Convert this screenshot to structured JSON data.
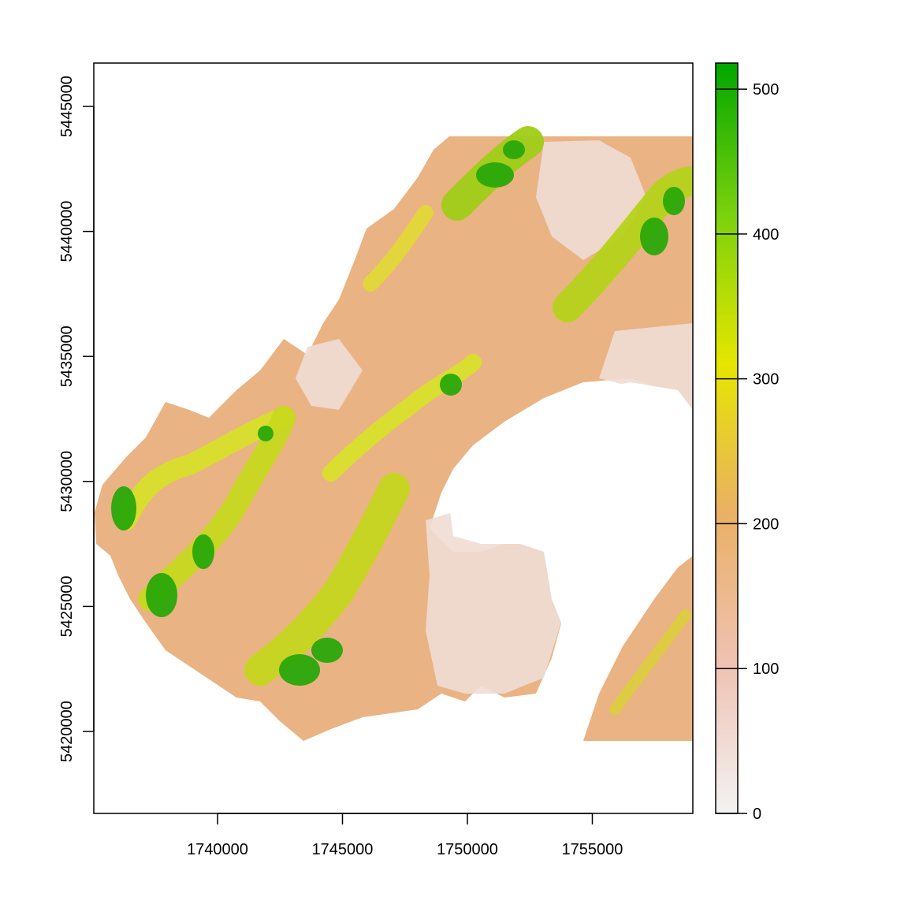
{
  "map": {
    "x_axis": {
      "range": [
        1735000,
        1759000
      ],
      "ticks": [
        1740000,
        1745000,
        1750000,
        1755000
      ],
      "tick_labels": [
        "1740000",
        "1745000",
        "1750000",
        "1755000"
      ]
    },
    "y_axis": {
      "range": [
        1416700,
        5446800
      ],
      "ticks": [
        5420000,
        5425000,
        5430000,
        5435000,
        5440000,
        5445000
      ],
      "tick_labels": [
        "5420000",
        "5425000",
        "5430000",
        "5435000",
        "5440000",
        "5445000"
      ]
    },
    "legend": {
      "placement": "right",
      "range": [
        0,
        518
      ],
      "ticks": [
        0,
        100,
        200,
        300,
        400,
        500
      ],
      "tick_labels": [
        "0",
        "100",
        "200",
        "300",
        "400",
        "500"
      ],
      "color_stops": [
        "#f2f2f2",
        "#efc2b3",
        "#eab064",
        "#e6e600",
        "#7ad10d",
        "#00a600"
      ]
    },
    "raster": {
      "type": "elevation",
      "extent_x": [
        1735000,
        1759000
      ],
      "extent_y": [
        5419400,
        5443800
      ]
    }
  }
}
